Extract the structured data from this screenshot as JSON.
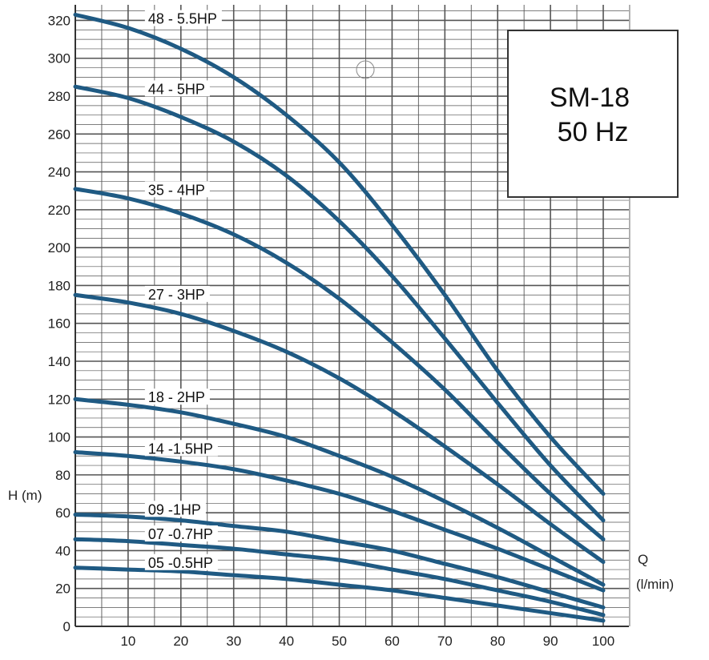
{
  "chart_data": {
    "type": "line",
    "xlabel_line1": "Q",
    "xlabel_line2": "(l/min)",
    "ylabel": "H (m)",
    "xlim": [
      0,
      100
    ],
    "ylim": [
      0,
      324
    ],
    "xticks": [
      10,
      20,
      30,
      40,
      50,
      60,
      70,
      80,
      90,
      100
    ],
    "yticks": [
      0,
      20,
      40,
      60,
      80,
      100,
      120,
      140,
      160,
      180,
      200,
      220,
      240,
      260,
      280,
      300,
      320
    ],
    "grid": true,
    "x": [
      0,
      10,
      20,
      30,
      40,
      50,
      60,
      70,
      80,
      90,
      100
    ],
    "series": [
      {
        "name": "48 - 5.5HP",
        "values": [
          323,
          316,
          305,
          290,
          270,
          245,
          212,
          175,
          135,
          100,
          70
        ]
      },
      {
        "name": "44 - 5HP",
        "values": [
          285,
          279,
          269,
          256,
          238,
          214,
          185,
          152,
          118,
          85,
          56
        ]
      },
      {
        "name": "35 - 4HP",
        "values": [
          231,
          226,
          218,
          207,
          192,
          173,
          150,
          125,
          97,
          70,
          46
        ]
      },
      {
        "name": "27 - 3HP",
        "values": [
          175,
          171,
          165,
          156,
          145,
          131,
          114,
          95,
          75,
          54,
          34
        ]
      },
      {
        "name": "18 - 2HP",
        "values": [
          120,
          117,
          113,
          107,
          100,
          90,
          79,
          66,
          52,
          37,
          22
        ]
      },
      {
        "name": "14 -1.5HP",
        "values": [
          92,
          90,
          87,
          83,
          77,
          70,
          61,
          51,
          41,
          30,
          19
        ]
      },
      {
        "name": "09 -1HP",
        "values": [
          59,
          58,
          56,
          53,
          50,
          45,
          40,
          33,
          26,
          18,
          10
        ]
      },
      {
        "name": "07 -0.7HP",
        "values": [
          46,
          45,
          43,
          41,
          38,
          35,
          30,
          25,
          19,
          13,
          6
        ]
      },
      {
        "name": "05 -0.5HP",
        "values": [
          31,
          30,
          29,
          27,
          25,
          22,
          19,
          15,
          11,
          7,
          3
        ]
      }
    ],
    "line_color": "#1f5a83",
    "grid_color": "#555555"
  },
  "model_box": {
    "line1": "SM-18",
    "line2": "50 Hz"
  }
}
